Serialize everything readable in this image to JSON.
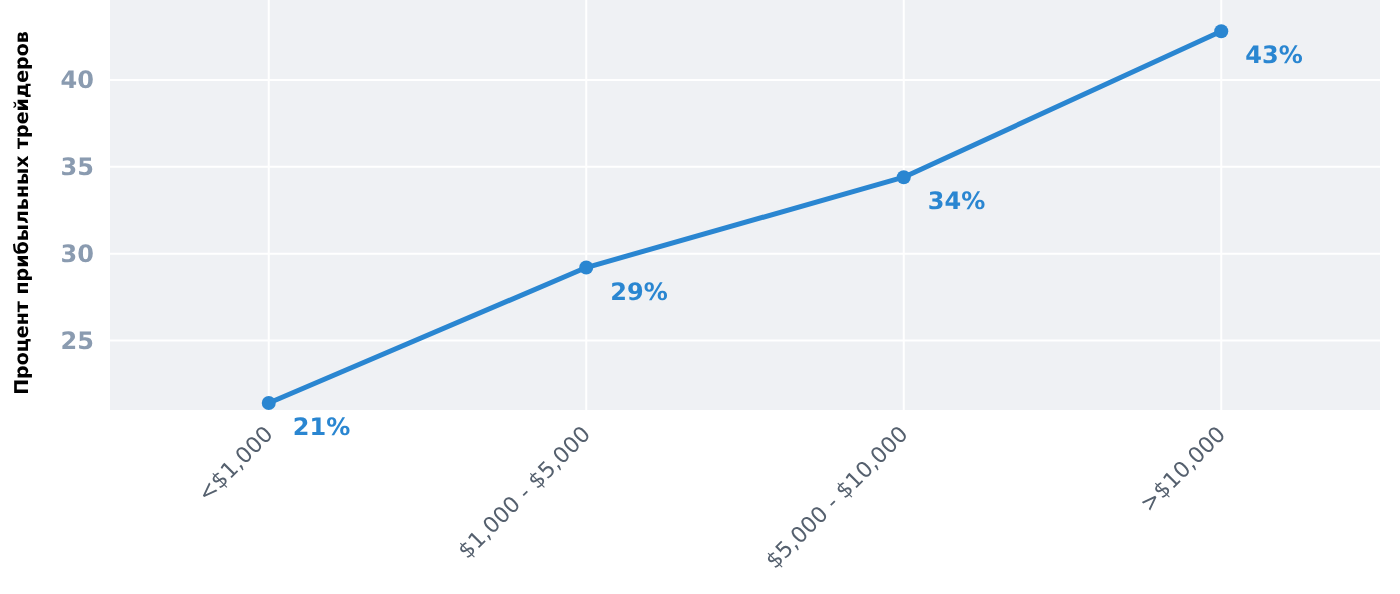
{
  "chart_data": {
    "type": "line",
    "ylabel": "Процент прибыльных трейдеров",
    "categories": [
      "<$1,000",
      "$1,000 - $5,000",
      "$5,000 - $10,000",
      ">$10,000"
    ],
    "series": [
      {
        "color": "#2a86d1",
        "values": [
          21.4,
          29.2,
          34.4,
          42.8
        ],
        "value_labels": [
          "21%",
          "29%",
          "34%",
          "43%"
        ]
      }
    ],
    "ylim": [
      21,
      44.6
    ],
    "yticks": [
      25,
      30,
      35,
      40
    ],
    "grid": true,
    "marker": "circle",
    "line_style": "solid"
  }
}
